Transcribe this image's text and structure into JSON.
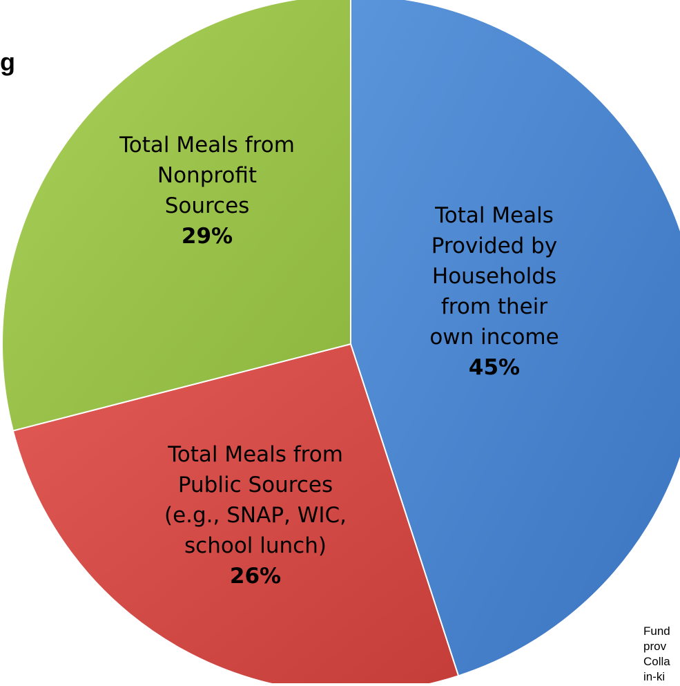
{
  "page": {
    "clipped_title_glyph": "g",
    "footnote_lines": [
      "Fund",
      "prov",
      "Colla",
      "in-ki"
    ]
  },
  "chart_data": {
    "type": "pie",
    "title": "",
    "slices": [
      {
        "label_lines": [
          "Total Meals",
          "Provided by",
          "Households",
          "from their",
          "own income"
        ],
        "percent_label": "45%",
        "value": 45,
        "color": "#4a86cf"
      },
      {
        "label_lines": [
          "Total Meals from",
          "Public Sources",
          "(e.g., SNAP, WIC,",
          "school lunch)"
        ],
        "percent_label": "26%",
        "value": 26,
        "color": "#d94c48"
      },
      {
        "label_lines": [
          "Total Meals from",
          "Nonprofit",
          "Sources"
        ],
        "percent_label": "29%",
        "value": 29,
        "color": "#9cc44a"
      }
    ]
  }
}
